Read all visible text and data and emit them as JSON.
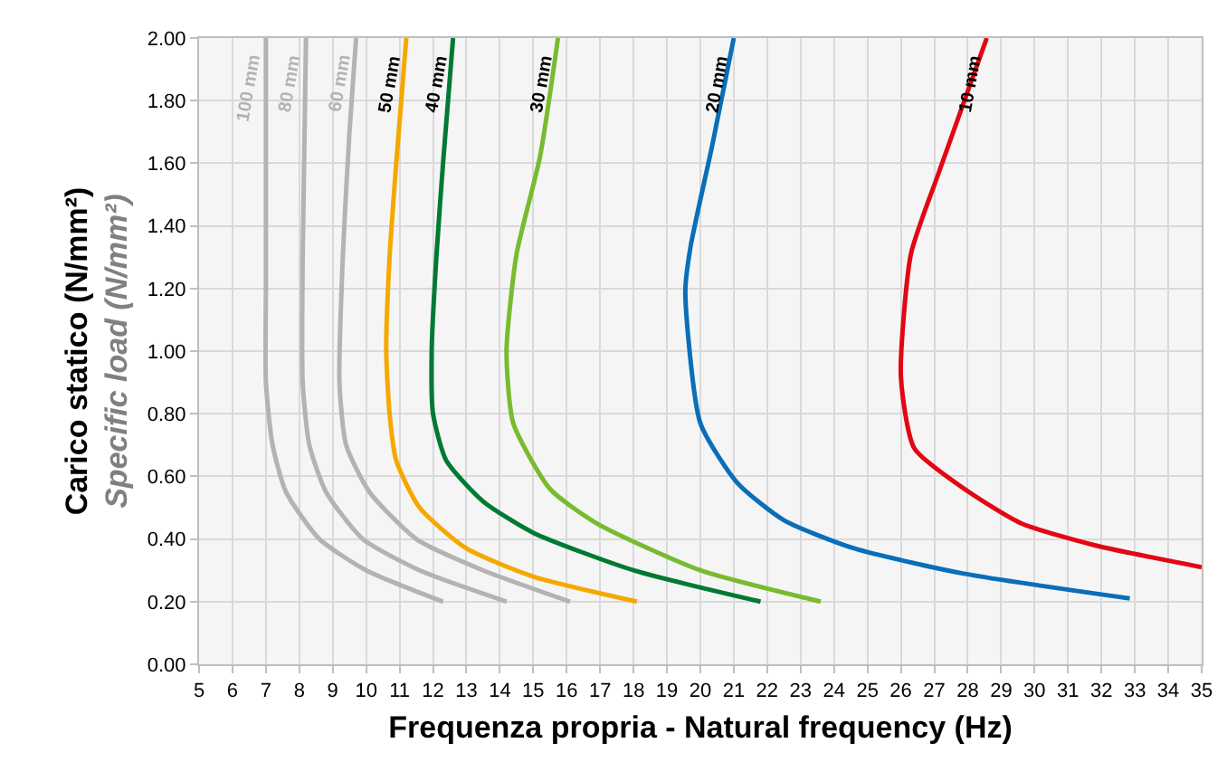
{
  "chart_data": {
    "type": "line",
    "xlabel": "Frequenza propria - Natural frequency (Hz)",
    "ylabel": "Carico statico (N/mm²)\nSpecific load (N/mm²)",
    "xlim": [
      5,
      35
    ],
    "xticks": [
      5,
      6,
      7,
      8,
      9,
      10,
      11,
      12,
      13,
      14,
      15,
      16,
      17,
      18,
      19,
      20,
      21,
      22,
      23,
      24,
      25,
      26,
      27,
      28,
      29,
      30,
      31,
      32,
      33,
      34,
      35
    ],
    "ylim": [
      0,
      2
    ],
    "yticks": [
      {
        "value": 0,
        "label": "0.00"
      },
      {
        "value": 0.2,
        "label": "0.20"
      },
      {
        "value": 0.4,
        "label": "0.40"
      },
      {
        "value": 0.6,
        "label": "0.60"
      },
      {
        "value": 0.8,
        "label": "0.80"
      },
      {
        "value": 1.0,
        "label": "1.00"
      },
      {
        "value": 1.2,
        "label": "1.20"
      },
      {
        "value": 1.4,
        "label": "1.40"
      },
      {
        "value": 1.6,
        "label": "1.60"
      },
      {
        "value": 1.8,
        "label": "1.80"
      },
      {
        "value": 2.0,
        "label": "2.00"
      }
    ],
    "grid": true,
    "legend": false,
    "marker": "none",
    "line_style": "solid",
    "series": [
      {
        "name": "100 mm",
        "color": "#b3b3b3",
        "x": [
          12.3,
          10.0,
          8.6,
          7.6,
          7.2,
          7.0,
          7.0,
          7.0,
          7.0
        ],
        "values": [
          0.2,
          0.3,
          0.4,
          0.55,
          0.7,
          0.9,
          1.2,
          1.6,
          2.0
        ]
      },
      {
        "name": "80 mm",
        "color": "#b3b3b3",
        "x": [
          14.2,
          11.6,
          9.9,
          8.8,
          8.3,
          8.1,
          8.1,
          8.2
        ],
        "values": [
          0.2,
          0.3,
          0.4,
          0.55,
          0.7,
          0.9,
          1.3,
          2.0
        ]
      },
      {
        "name": "60 mm",
        "color": "#b3b3b3",
        "x": [
          16.1,
          13.5,
          11.5,
          10.1,
          9.4,
          9.2,
          9.3,
          9.5,
          9.7
        ],
        "values": [
          0.2,
          0.3,
          0.4,
          0.55,
          0.7,
          0.9,
          1.3,
          1.7,
          2.0
        ]
      },
      {
        "name": "50 mm",
        "color": "#f5a800",
        "x": [
          18.1,
          15.0,
          13.0,
          11.6,
          10.9,
          10.7,
          10.6,
          10.7,
          10.9,
          11.2
        ],
        "values": [
          0.2,
          0.28,
          0.37,
          0.5,
          0.65,
          0.8,
          1.0,
          1.3,
          1.6,
          2.0
        ]
      },
      {
        "name": "40 mm",
        "color": "#007a33",
        "x": [
          21.8,
          18.0,
          15.0,
          13.5,
          12.4,
          12.0,
          11.96,
          12.1,
          12.3,
          12.6
        ],
        "values": [
          0.2,
          0.3,
          0.42,
          0.52,
          0.65,
          0.8,
          1.0,
          1.3,
          1.6,
          2.0
        ]
      },
      {
        "name": "30 mm",
        "color": "#78bb2f",
        "x": [
          23.6,
          20.0,
          16.9,
          15.5,
          14.4,
          14.2,
          14.5,
          15.2,
          15.74
        ],
        "values": [
          0.2,
          0.3,
          0.45,
          0.56,
          0.77,
          1.0,
          1.31,
          1.62,
          2.0
        ]
      },
      {
        "name": "20 mm",
        "color": "#0a6eb8",
        "x": [
          32.85,
          27.85,
          24.6,
          22.5,
          21.1,
          20.0,
          19.55,
          19.7,
          20.36,
          21.0
        ],
        "values": [
          0.21,
          0.29,
          0.37,
          0.46,
          0.58,
          0.77,
          1.19,
          1.33,
          1.66,
          2.0
        ]
      },
      {
        "name": "10 mm",
        "color": "#e30613",
        "x": [
          35.0,
          31.8,
          29.6,
          27.9,
          26.4,
          26.0,
          26.3,
          27.1,
          28.57
        ],
        "values": [
          0.31,
          0.38,
          0.45,
          0.56,
          0.69,
          0.92,
          1.31,
          1.56,
          2.0
        ]
      }
    ]
  }
}
